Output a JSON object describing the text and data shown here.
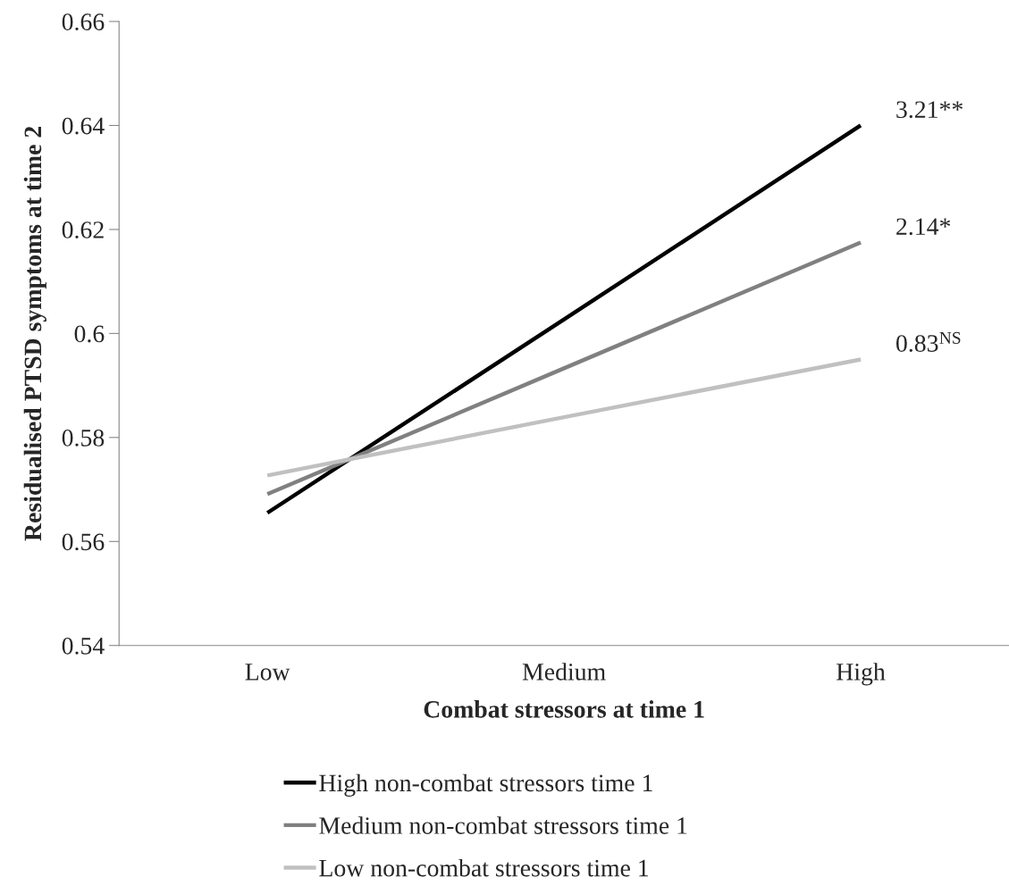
{
  "chart_data": {
    "type": "line",
    "xlabel": "Combat stressors at time 1",
    "ylabel": "Residualised PTSD symptoms at time 2",
    "categories": [
      "Low",
      "Medium",
      "High"
    ],
    "series": [
      {
        "name": "High non-combat stressors time 1",
        "color": "#000000",
        "values": [
          0.5655,
          0.6027,
          0.64
        ]
      },
      {
        "name": "Medium non-combat stressors time 1",
        "color": "#808080",
        "values": [
          0.5691,
          0.5933,
          0.6175
        ]
      },
      {
        "name": "Low non-combat stressors time 1",
        "color": "#c0c0c0",
        "values": [
          0.5727,
          0.5839,
          0.595
        ]
      }
    ],
    "annotations": [
      {
        "text": "3.21**",
        "x": "High",
        "y": 0.64
      },
      {
        "text": "2.14*",
        "x": "High",
        "y": 0.6175
      },
      {
        "text": "0.83$^{NS}$",
        "x": "High",
        "y": 0.595
      }
    ],
    "ylim": [
      0.54,
      0.66
    ],
    "yticks": [
      0.54,
      0.56,
      0.58,
      {
        "value": 0.6,
        "label": "0.6"
      },
      0.62,
      0.64,
      0.66
    ],
    "grid": false,
    "legend": "bottom",
    "marker": "none",
    "line_style": "solid"
  }
}
